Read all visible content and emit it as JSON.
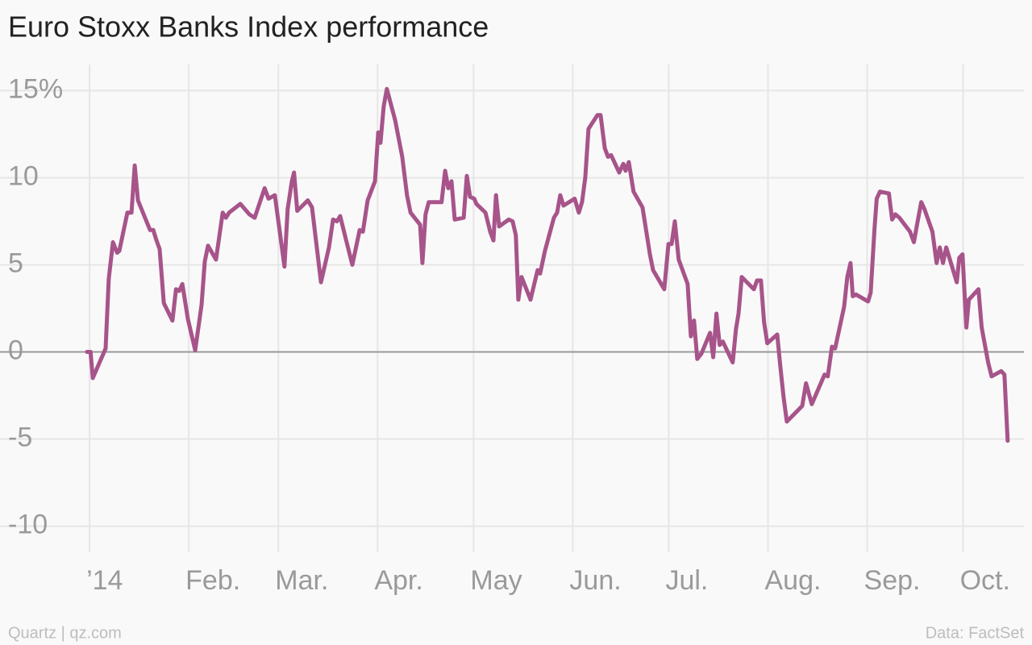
{
  "chart_data": {
    "type": "line",
    "title": "Euro Stoxx Banks Index performance",
    "source": "Data: FactSet",
    "credit": "Quartz | qz.com",
    "xlim": [
      -28,
      292
    ],
    "xticks": [
      {
        "value": 0,
        "label": "’14"
      },
      {
        "value": 31,
        "label": "Feb."
      },
      {
        "value": 59,
        "label": "Mar."
      },
      {
        "value": 90,
        "label": "Apr."
      },
      {
        "value": 120,
        "label": "May"
      },
      {
        "value": 151,
        "label": "Jun."
      },
      {
        "value": 181,
        "label": "Jul."
      },
      {
        "value": 212,
        "label": "Aug."
      },
      {
        "value": 243,
        "label": "Sep."
      },
      {
        "value": 273,
        "label": "Oct."
      }
    ],
    "ylim": [
      -11.5,
      16.5
    ],
    "yticks": [
      {
        "value": 15,
        "label": "15%"
      },
      10,
      5,
      0,
      -5,
      -10
    ],
    "grid": true,
    "series": [
      {
        "name": "Euro Stoxx Banks Index",
        "color": "#a7548a",
        "x": [
          -0.8,
          0.3,
          1,
          5,
          6,
          7.3,
          8.6,
          9.3,
          11.8,
          13.1,
          14.1,
          15.1,
          18.9,
          19.9,
          20.9,
          21.9,
          23.2,
          25.9,
          27,
          28,
          29,
          30.7,
          33,
          35,
          36,
          37,
          39.5,
          41.6,
          42.6,
          43.6,
          47.1,
          49.9,
          51.6,
          54.7,
          55.9,
          57.9,
          60.9,
          61.9,
          63.2,
          63.9,
          64.9,
          68.2,
          69.5,
          72.3,
          74.8,
          76.1,
          77.3,
          78.3,
          79.8,
          82.1,
          84.4,
          85.4,
          86.9,
          89.2,
          90.2,
          90.9,
          91.9,
          92.9,
          95.5,
          97.7,
          99.2,
          100.3,
          103.3,
          104,
          105,
          106,
          110,
          111.1,
          112.1,
          113.1,
          114.1,
          116.9,
          117.9,
          118.9,
          120.2,
          120.9,
          123.7,
          125.2,
          126.2,
          127,
          128,
          131,
          132.2,
          133.2,
          134,
          135,
          137.8,
          140,
          140.8,
          142.3,
          145.1,
          146.1,
          147.1,
          148.1,
          151.6,
          152.9,
          153.9,
          154.9,
          155.9,
          158.7,
          159.7,
          161,
          162,
          163,
          165.5,
          166.8,
          167.5,
          168.5,
          170,
          172.8,
          175.1,
          176.1,
          179.6,
          180.9,
          181.9,
          182.9,
          184.1,
          186.9,
          187.9,
          188.9,
          189.9,
          191.2,
          193.9,
          194.9,
          195.9,
          196.9,
          197.9,
          201,
          202,
          202.8,
          203.8,
          207.6,
          208.6,
          209.8,
          210.8,
          211.8,
          214.9,
          215.9,
          216.9,
          217.9,
          222.7,
          223.9,
          225.7,
          229.7,
          230.7,
          232,
          233,
          235.8,
          236.8,
          237.8,
          238.5,
          239.5,
          243.3,
          244.1,
          245.3,
          246,
          247,
          249.8,
          250.8,
          251.8,
          253.1,
          256.4,
          257.6,
          258.7,
          259.9,
          260.9,
          263.4,
          264.7,
          265.7,
          266.7,
          267.7,
          271,
          271.8,
          272.8,
          274,
          274.8,
          277.8,
          278.8,
          280.8,
          281.9,
          284.9,
          285.9,
          286.9
        ],
        "values": [
          0,
          0,
          -1.5,
          0.2,
          4.2,
          6.3,
          5.7,
          5.8,
          8.0,
          8.0,
          10.7,
          8.7,
          7.0,
          7.0,
          6.4,
          5.9,
          2.8,
          1.8,
          3.6,
          3.5,
          3.9,
          1.9,
          0.1,
          2.7,
          5.2,
          6.1,
          5.3,
          8.0,
          7.7,
          8.0,
          8.5,
          7.9,
          7.7,
          9.4,
          8.8,
          9.0,
          4.9,
          8.2,
          9.8,
          10.3,
          8.1,
          8.7,
          8.3,
          4.0,
          6.0,
          7.6,
          7.5,
          7.8,
          6.7,
          5.0,
          7.0,
          6.9,
          8.7,
          9.8,
          12.6,
          12.0,
          14.1,
          15.1,
          13.3,
          11.2,
          9.0,
          8.0,
          7.3,
          5.1,
          7.9,
          8.6,
          8.6,
          10.4,
          9.4,
          9.8,
          7.6,
          7.7,
          10.1,
          8.9,
          8.8,
          8.5,
          8.0,
          6.9,
          6.4,
          9.0,
          7.2,
          7.6,
          7.5,
          6.7,
          3.0,
          4.3,
          3.0,
          4.7,
          4.5,
          5.8,
          7.7,
          8.0,
          9.0,
          8.4,
          8.8,
          8.0,
          8.6,
          10.0,
          12.8,
          13.6,
          13.6,
          11.7,
          11.2,
          11.3,
          10.3,
          10.8,
          10.4,
          10.9,
          9.2,
          8.3,
          5.6,
          4.7,
          3.6,
          6.2,
          6.2,
          7.5,
          5.3,
          3.9,
          0.9,
          1.8,
          -0.4,
          -0.1,
          1.1,
          -0.3,
          2.2,
          0.4,
          0.6,
          -0.6,
          1.3,
          2.2,
          4.3,
          3.6,
          4.1,
          4.1,
          1.7,
          0.5,
          1.0,
          -0.9,
          -2.6,
          -4.0,
          -3.1,
          -1.8,
          -3.0,
          -1.3,
          -1.4,
          0.3,
          0.2,
          2.6,
          4.3,
          5.1,
          3.2,
          3.3,
          2.9,
          3.4,
          7.1,
          8.8,
          9.2,
          9.1,
          7.6,
          7.9,
          7.7,
          6.9,
          6.3,
          7.4,
          8.6,
          8.2,
          6.9,
          5.1,
          6.0,
          5.1,
          6.0,
          4.0,
          5.4,
          5.6,
          1.4,
          3.0,
          3.6,
          1.4,
          -0.6,
          -1.4,
          -1.1,
          -1.3,
          -5.1
        ]
      }
    ]
  }
}
